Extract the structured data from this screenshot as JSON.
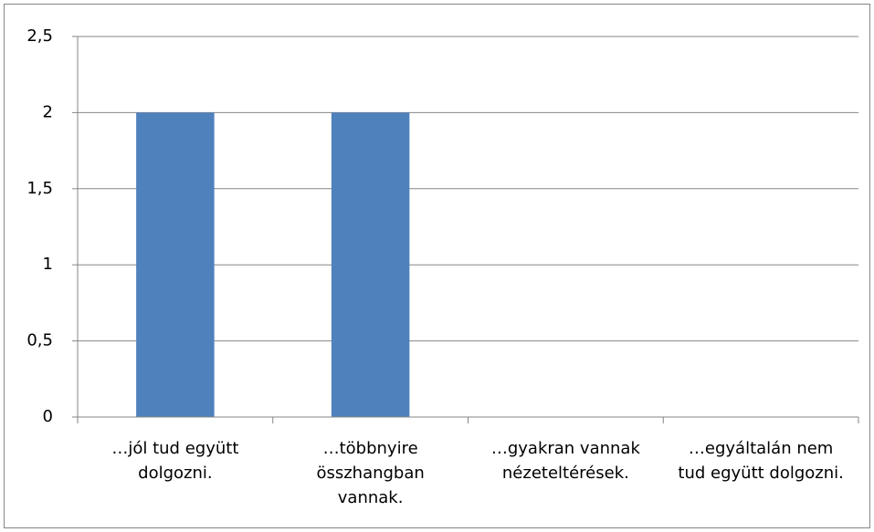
{
  "chart_data": {
    "type": "bar",
    "categories": [
      "…jól tud együtt dolgozni.",
      "…többnyire összhangban vannak.",
      "…gyakran vannak nézeteltérések.",
      "…egyáltalán nem tud együtt dolgozni."
    ],
    "values": [
      2,
      2,
      0,
      0
    ],
    "color": "#4f81bd",
    "ylim": [
      0,
      2.5
    ],
    "yticks": [
      0,
      {
        "value": 0.5,
        "label": "0,5"
      },
      1,
      {
        "value": 1.5,
        "label": "1,5"
      },
      2,
      {
        "value": 2.5,
        "label": "2,5"
      }
    ],
    "grid": true
  }
}
